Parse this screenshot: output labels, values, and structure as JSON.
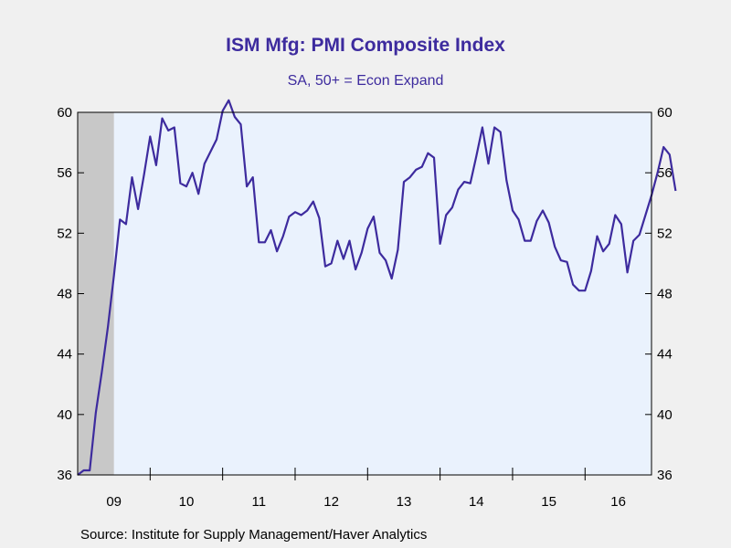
{
  "chart_data": {
    "type": "line",
    "title": "ISM Mfg: PMI Composite Index",
    "subtitle": "SA, 50+ = Econ Expand",
    "source": "Source:  Institute for Supply Management/Haver Analytics",
    "ylim": [
      36,
      60
    ],
    "yticks": [
      36,
      40,
      44,
      48,
      52,
      56,
      60
    ],
    "ytick_labels": [
      "36",
      "40",
      "44",
      "48",
      "52",
      "56",
      "60"
    ],
    "xlim": [
      2009.0,
      2016.9167
    ],
    "xticks": [
      {
        "label": "09",
        "x": 2009.0
      },
      {
        "label": "10",
        "x": 2010.0
      },
      {
        "label": "11",
        "x": 2011.0
      },
      {
        "label": "12",
        "x": 2012.0
      },
      {
        "label": "13",
        "x": 2013.0
      },
      {
        "label": "14",
        "x": 2014.0
      },
      {
        "label": "15",
        "x": 2015.0
      },
      {
        "label": "16",
        "x": 2016.0
      }
    ],
    "recession_shade": {
      "from": 2009.0,
      "to": 2009.5
    },
    "series": [
      {
        "color": "#3d2b9e",
        "start": "2009-01",
        "frequency": "monthly",
        "values": [
          35.6,
          36.3,
          36.3,
          40.1,
          42.8,
          45.8,
          49.2,
          52.9,
          52.6,
          55.7,
          53.6,
          55.9,
          58.4,
          56.5,
          59.6,
          58.8,
          59.0,
          55.3,
          55.1,
          56.0,
          54.6,
          56.6,
          57.4,
          58.2,
          60.1,
          60.8,
          59.7,
          59.2,
          55.1,
          55.7,
          51.4,
          51.4,
          52.2,
          50.8,
          51.8,
          53.1,
          53.4,
          53.2,
          53.5,
          54.1,
          53.0,
          49.8,
          50.0,
          51.5,
          50.3,
          51.5,
          49.6,
          50.7,
          52.3,
          53.1,
          50.7,
          50.2,
          49.0,
          50.9,
          55.4,
          55.7,
          56.2,
          56.4,
          57.3,
          57.0,
          51.3,
          53.2,
          53.7,
          54.9,
          55.4,
          55.3,
          57.1,
          59.0,
          56.6,
          59.0,
          58.7,
          55.5,
          53.5,
          52.9,
          51.5,
          51.5,
          52.8,
          53.5,
          52.7,
          51.1,
          50.2,
          50.1,
          48.6,
          48.2,
          48.2,
          49.5,
          51.8,
          50.8,
          51.3,
          53.2,
          52.6,
          49.4,
          51.5,
          51.9,
          53.2,
          54.5,
          56.0,
          57.7,
          57.2,
          54.8
        ]
      }
    ]
  }
}
